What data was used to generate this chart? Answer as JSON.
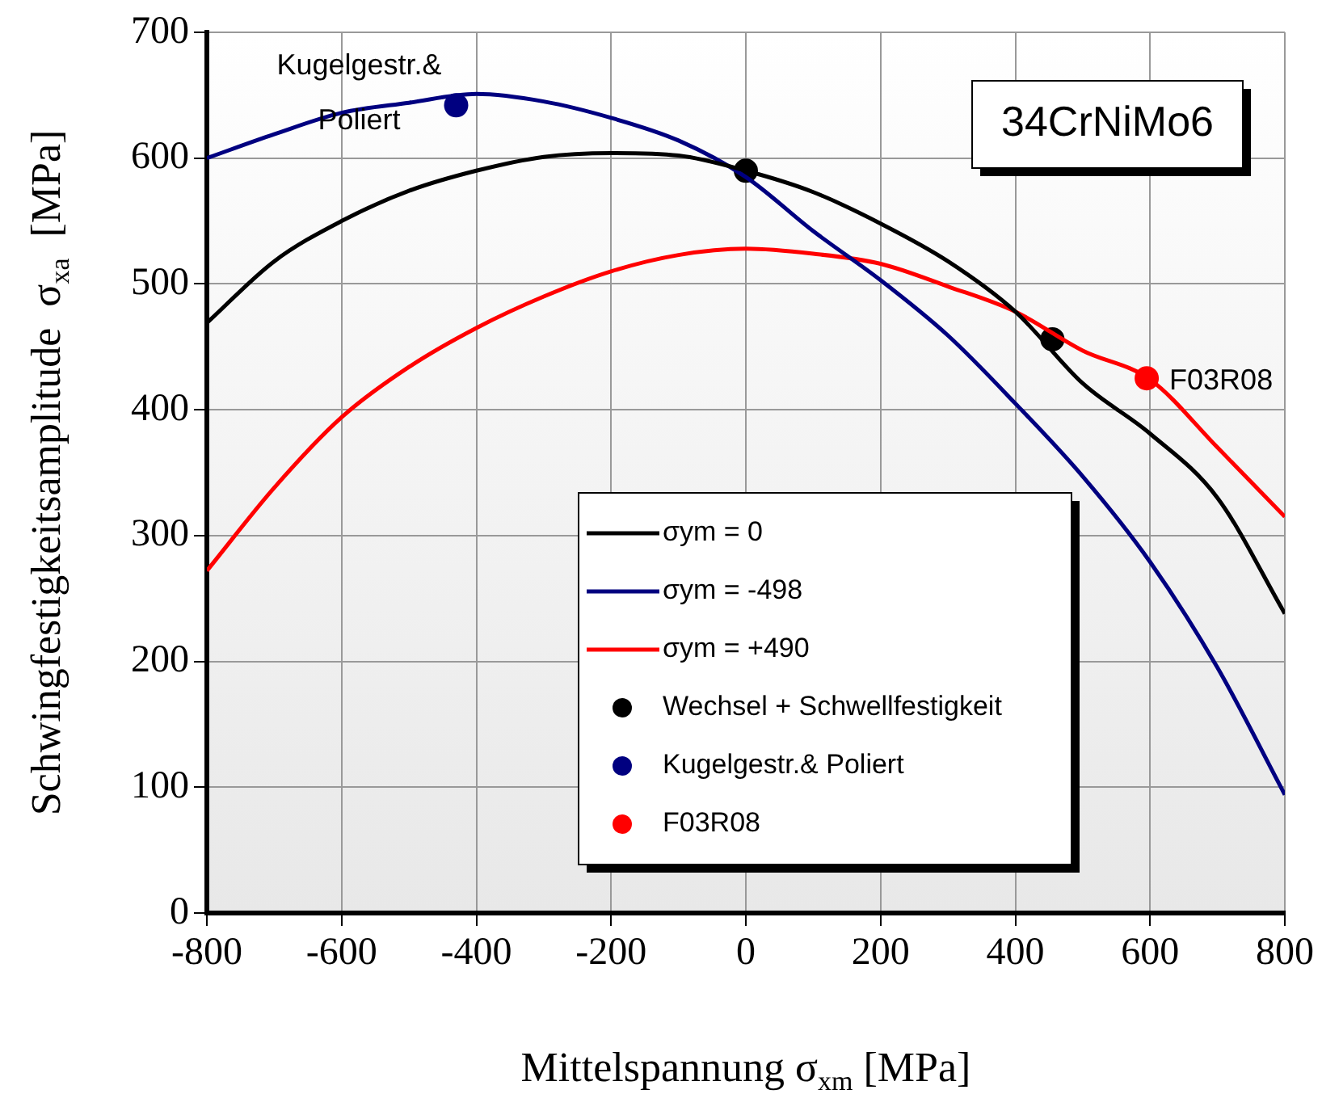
{
  "chart_data": {
    "type": "line",
    "xlabel": "Mittelspannung σ$_{xm}$ [MPa]",
    "ylabel": "Schwingfestigkeitsamplitude  σ$_{xa}$  [MPa]",
    "xlim": [
      -800,
      800
    ],
    "xticks": [
      -800,
      -600,
      -400,
      -200,
      0,
      200,
      400,
      600,
      800
    ],
    "ylim": [
      0,
      700
    ],
    "yticks": [
      0,
      100,
      200,
      300,
      400,
      500,
      600,
      700
    ],
    "grid": true,
    "legend": "bottom right",
    "marker": "none",
    "series": [
      {
        "name": "σym = 0",
        "color": "#000000",
        "x": [
          -800,
          -700,
          -600,
          -500,
          -400,
          -300,
          -200,
          -100,
          0,
          100,
          200,
          300,
          400,
          500,
          600,
          700,
          800
        ],
        "values": [
          469,
          518,
          550,
          574,
          590,
          601,
          604,
          602,
          590,
          573,
          548,
          518,
          478,
          421,
          381,
          330,
          238
        ]
      },
      {
        "name": "σym = -498",
        "color": "#000080",
        "x": [
          -800,
          -700,
          -600,
          -500,
          -400,
          -300,
          -200,
          -100,
          0,
          100,
          200,
          300,
          400,
          500,
          600,
          700,
          800
        ],
        "values": [
          600,
          619,
          636,
          644,
          651,
          645,
          632,
          614,
          585,
          542,
          503,
          459,
          405,
          347,
          279,
          195,
          94
        ]
      },
      {
        "name": "σym = +490",
        "color": "#ff0000",
        "x": [
          -800,
          -700,
          -600,
          -500,
          -400,
          -300,
          -200,
          -100,
          0,
          100,
          200,
          300,
          400,
          500,
          600,
          700,
          800
        ],
        "values": [
          272,
          338,
          394,
          434,
          465,
          490,
          510,
          523,
          528,
          524,
          516,
          498,
          478,
          447,
          424,
          370,
          315
        ]
      },
      {
        "name": "Wechsel + Schwellfestigkeit",
        "type": "scatter",
        "marker": "circle",
        "color": "#000000",
        "x": [
          0,
          455
        ],
        "values": [
          590,
          456
        ]
      },
      {
        "name": "Kugelgestr.& Poliert",
        "type": "scatter",
        "marker": "circle",
        "color": "#000080",
        "x": [
          -430
        ],
        "values": [
          642
        ]
      },
      {
        "name": "F03R08",
        "type": "scatter",
        "marker": "circle",
        "color": "#ff0000",
        "x": [
          595
        ],
        "values": [
          425
        ]
      }
    ],
    "annotations": [
      "34CrNiMo6",
      {
        "text": "Kugelgestr.&\nPoliert",
        "x": -430,
        "y": 642
      },
      {
        "text": "F03R08",
        "x": 595,
        "y": 425
      }
    ]
  }
}
